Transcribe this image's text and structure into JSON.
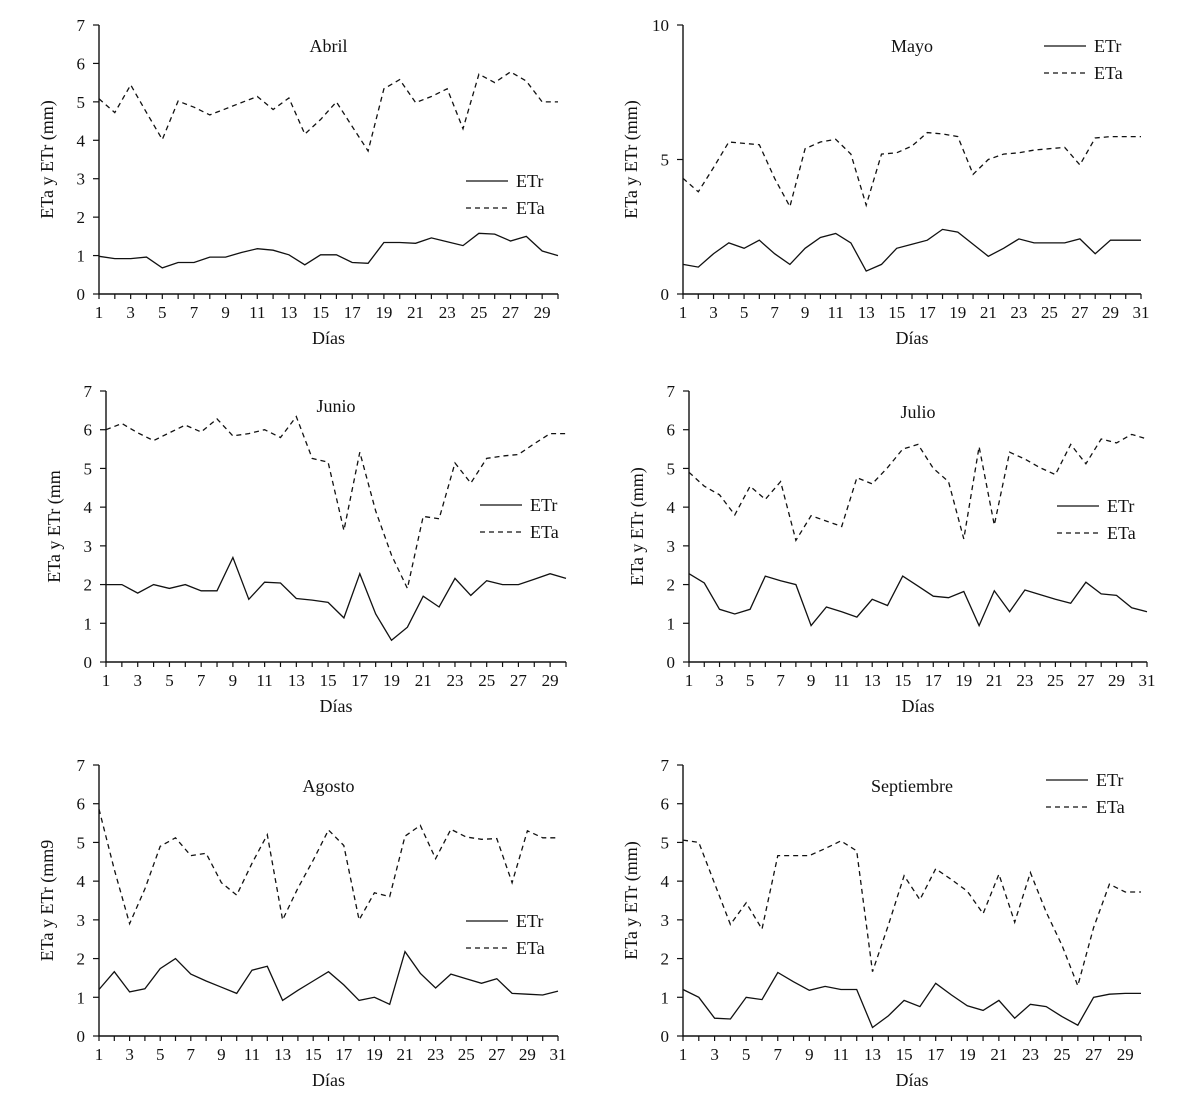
{
  "chart_data": [
    {
      "type": "line",
      "title": "Abril",
      "xlabel": "Días",
      "ylabel": "ETa y ETr (mm)",
      "xlim": [
        1,
        30
      ],
      "ylim": [
        0,
        7
      ],
      "xticks": [
        1,
        3,
        5,
        7,
        9,
        11,
        13,
        15,
        17,
        19,
        21,
        23,
        25,
        27,
        29
      ],
      "yticks": [
        0,
        1,
        2,
        3,
        4,
        5,
        6,
        7
      ],
      "legend_position": "center-right",
      "series": [
        {
          "name": "ETr",
          "style": "solid",
          "x": [
            1,
            2,
            3,
            4,
            5,
            6,
            7,
            8,
            9,
            10,
            11,
            12,
            13,
            14,
            15,
            16,
            17,
            18,
            19,
            20,
            21,
            22,
            23,
            24,
            25,
            26,
            27,
            28,
            29,
            30
          ],
          "values": [
            0.98,
            0.92,
            0.92,
            0.96,
            0.68,
            0.82,
            0.82,
            0.96,
            0.96,
            1.08,
            1.18,
            1.14,
            1.02,
            0.76,
            1.02,
            1.02,
            0.82,
            0.8,
            1.34,
            1.34,
            1.32,
            1.46,
            1.36,
            1.26,
            1.58,
            1.56,
            1.38,
            1.5,
            1.12,
            1.0
          ]
        },
        {
          "name": "ETa",
          "style": "dashed",
          "x": [
            1,
            2,
            3,
            4,
            5,
            6,
            7,
            8,
            9,
            10,
            11,
            12,
            13,
            14,
            15,
            16,
            17,
            18,
            19,
            20,
            21,
            22,
            23,
            24,
            25,
            26,
            27,
            28,
            29,
            30
          ],
          "values": [
            5.08,
            4.72,
            5.44,
            4.72,
            4.02,
            5.02,
            4.86,
            4.66,
            4.82,
            4.98,
            5.14,
            4.8,
            5.1,
            4.16,
            4.54,
            5.0,
            4.36,
            3.72,
            5.34,
            5.58,
            4.98,
            5.14,
            5.34,
            4.3,
            5.72,
            5.5,
            5.78,
            5.54,
            5.0,
            5.0
          ]
        }
      ]
    },
    {
      "type": "line",
      "title": "Mayo",
      "xlabel": "Días",
      "ylabel": "ETa y ETr (mm)",
      "xlim": [
        1,
        31
      ],
      "ylim": [
        0,
        10
      ],
      "xticks": [
        1,
        3,
        5,
        7,
        9,
        11,
        13,
        15,
        17,
        19,
        21,
        23,
        25,
        27,
        29,
        31
      ],
      "yticks": [
        0,
        5,
        10
      ],
      "legend_position": "top-right",
      "series": [
        {
          "name": "ETr",
          "style": "solid",
          "x": [
            1,
            2,
            3,
            4,
            5,
            6,
            7,
            8,
            9,
            10,
            11,
            12,
            13,
            14,
            15,
            16,
            17,
            18,
            19,
            20,
            21,
            22,
            23,
            24,
            25,
            26,
            27,
            28,
            29,
            30,
            31
          ],
          "values": [
            1.1,
            1.0,
            1.5,
            1.9,
            1.7,
            2.0,
            1.5,
            1.1,
            1.7,
            2.1,
            2.25,
            1.9,
            0.85,
            1.1,
            1.7,
            1.85,
            2.0,
            2.4,
            2.3,
            1.85,
            1.4,
            1.7,
            2.05,
            1.9,
            1.9,
            1.9,
            2.05,
            1.5,
            2.0,
            2.0,
            2.0
          ]
        },
        {
          "name": "ETa",
          "style": "dashed",
          "x": [
            1,
            2,
            3,
            4,
            5,
            6,
            7,
            8,
            9,
            10,
            11,
            12,
            13,
            14,
            15,
            16,
            17,
            18,
            19,
            20,
            21,
            22,
            23,
            24,
            25,
            26,
            27,
            28,
            29,
            30,
            31
          ],
          "values": [
            4.3,
            3.8,
            4.7,
            5.65,
            5.6,
            5.55,
            4.3,
            3.25,
            5.4,
            5.65,
            5.75,
            5.2,
            3.3,
            5.2,
            5.25,
            5.5,
            6.0,
            5.95,
            5.85,
            4.45,
            5.0,
            5.2,
            5.25,
            5.35,
            5.4,
            5.45,
            4.8,
            5.8,
            5.85,
            5.85,
            5.85
          ]
        }
      ]
    },
    {
      "type": "line",
      "title": "Junio",
      "xlabel": "Días",
      "ylabel": "ETa y ETr (mm",
      "xlim": [
        1,
        30
      ],
      "ylim": [
        0,
        7
      ],
      "xticks": [
        1,
        3,
        5,
        7,
        9,
        11,
        13,
        15,
        17,
        19,
        21,
        23,
        25,
        27,
        29
      ],
      "yticks": [
        0,
        1,
        2,
        3,
        4,
        5,
        6,
        7
      ],
      "legend_position": "center-right",
      "series": [
        {
          "name": "ETr",
          "style": "solid",
          "x": [
            1,
            2,
            3,
            4,
            5,
            6,
            7,
            8,
            9,
            10,
            11,
            12,
            13,
            14,
            15,
            16,
            17,
            18,
            19,
            20,
            21,
            22,
            23,
            24,
            25,
            26,
            27,
            28,
            29,
            30
          ],
          "values": [
            2.0,
            2.0,
            1.78,
            2.0,
            1.9,
            2.0,
            1.84,
            1.84,
            2.7,
            1.62,
            2.06,
            2.04,
            1.64,
            1.6,
            1.54,
            1.14,
            2.28,
            1.24,
            0.56,
            0.9,
            1.7,
            1.42,
            2.16,
            1.72,
            2.1,
            2.0,
            2.0,
            2.14,
            2.28,
            2.16
          ]
        },
        {
          "name": "ETa",
          "style": "dashed",
          "x": [
            1,
            2,
            3,
            4,
            5,
            6,
            7,
            8,
            9,
            10,
            11,
            12,
            13,
            14,
            15,
            16,
            17,
            18,
            19,
            20,
            21,
            22,
            23,
            24,
            25,
            26,
            27,
            28,
            29,
            30
          ],
          "values": [
            6.0,
            6.16,
            5.92,
            5.72,
            5.92,
            6.12,
            5.94,
            6.28,
            5.84,
            5.9,
            6.0,
            5.8,
            6.34,
            5.26,
            5.16,
            3.4,
            5.42,
            3.9,
            2.76,
            1.9,
            3.76,
            3.7,
            5.14,
            4.62,
            5.26,
            5.32,
            5.36,
            5.64,
            5.9,
            5.9
          ]
        }
      ]
    },
    {
      "type": "line",
      "title": "Julio",
      "xlabel": "Días",
      "ylabel": "ETa y ETr (mm)",
      "xlim": [
        1,
        31
      ],
      "ylim": [
        0,
        7
      ],
      "xticks": [
        1,
        3,
        5,
        7,
        9,
        11,
        13,
        15,
        17,
        19,
        21,
        23,
        25,
        27,
        29,
        31
      ],
      "yticks": [
        0,
        1,
        2,
        3,
        4,
        5,
        6,
        7
      ],
      "legend_position": "center-right",
      "series": [
        {
          "name": "ETr",
          "style": "solid",
          "x": [
            1,
            2,
            3,
            4,
            5,
            6,
            7,
            8,
            9,
            10,
            11,
            12,
            13,
            14,
            15,
            16,
            17,
            18,
            19,
            20,
            21,
            22,
            23,
            24,
            25,
            26,
            27,
            28,
            29,
            30,
            31
          ],
          "values": [
            2.28,
            2.04,
            1.36,
            1.24,
            1.36,
            2.22,
            2.1,
            2.0,
            0.94,
            1.42,
            1.3,
            1.16,
            1.62,
            1.46,
            2.22,
            1.96,
            1.7,
            1.66,
            1.82,
            0.94,
            1.84,
            1.3,
            1.86,
            1.74,
            1.62,
            1.52,
            2.06,
            1.76,
            1.72,
            1.4,
            1.3
          ]
        },
        {
          "name": "ETa",
          "style": "dashed",
          "x": [
            1,
            2,
            3,
            4,
            5,
            6,
            7,
            8,
            9,
            10,
            11,
            12,
            13,
            14,
            15,
            16,
            17,
            18,
            19,
            20,
            21,
            22,
            23,
            24,
            25,
            26,
            27,
            28,
            29,
            30,
            31
          ],
          "values": [
            4.9,
            4.54,
            4.32,
            3.8,
            4.54,
            4.2,
            4.66,
            3.14,
            3.78,
            3.64,
            3.5,
            4.76,
            4.6,
            5.02,
            5.5,
            5.62,
            5.0,
            4.66,
            3.18,
            5.56,
            3.54,
            5.42,
            5.24,
            5.02,
            4.84,
            5.62,
            5.12,
            5.76,
            5.66,
            5.88,
            5.76
          ]
        }
      ]
    },
    {
      "type": "line",
      "title": "Agosto",
      "xlabel": "Días",
      "ylabel": "ETa y ETr (mm9",
      "xlim": [
        1,
        31
      ],
      "ylim": [
        0,
        7
      ],
      "xticks": [
        1,
        3,
        5,
        7,
        9,
        11,
        13,
        15,
        17,
        19,
        21,
        23,
        25,
        27,
        29,
        31
      ],
      "yticks": [
        0,
        1,
        2,
        3,
        4,
        5,
        6,
        7
      ],
      "legend_position": "center-right",
      "series": [
        {
          "name": "ETr",
          "style": "solid",
          "x": [
            1,
            2,
            3,
            4,
            5,
            6,
            7,
            8,
            9,
            10,
            11,
            12,
            13,
            14,
            15,
            16,
            17,
            18,
            19,
            20,
            21,
            22,
            23,
            24,
            25,
            26,
            27,
            28,
            29,
            30,
            31
          ],
          "values": [
            1.2,
            1.66,
            1.14,
            1.22,
            1.74,
            2.0,
            1.6,
            1.42,
            1.26,
            1.1,
            1.7,
            1.8,
            0.92,
            1.18,
            1.42,
            1.66,
            1.32,
            0.92,
            1.0,
            0.82,
            2.18,
            1.62,
            1.24,
            1.6,
            1.48,
            1.36,
            1.48,
            1.1,
            1.08,
            1.06,
            1.16
          ]
        },
        {
          "name": "ETa",
          "style": "dashed",
          "x": [
            1,
            2,
            3,
            4,
            5,
            6,
            7,
            8,
            9,
            10,
            11,
            12,
            13,
            14,
            15,
            16,
            17,
            18,
            19,
            20,
            21,
            22,
            23,
            24,
            25,
            26,
            27,
            28,
            29,
            30,
            31
          ],
          "values": [
            5.86,
            4.3,
            2.9,
            3.8,
            4.9,
            5.12,
            4.66,
            4.72,
            3.96,
            3.64,
            4.46,
            5.2,
            3.0,
            3.82,
            4.54,
            5.32,
            4.92,
            3.0,
            3.7,
            3.6,
            5.16,
            5.44,
            4.58,
            5.34,
            5.14,
            5.08,
            5.1,
            3.96,
            5.3,
            5.12,
            5.12
          ]
        }
      ]
    },
    {
      "type": "line",
      "title": "Septiembre",
      "xlabel": "Días",
      "ylabel": "ETa y ETr (mm)",
      "xlim": [
        1,
        30
      ],
      "ylim": [
        0,
        7
      ],
      "xticks": [
        1,
        3,
        5,
        7,
        9,
        11,
        13,
        15,
        17,
        19,
        21,
        23,
        25,
        27,
        29
      ],
      "yticks": [
        0,
        1,
        2,
        3,
        4,
        5,
        6,
        7
      ],
      "legend_position": "top-right",
      "series": [
        {
          "name": "ETr",
          "style": "solid",
          "x": [
            1,
            2,
            3,
            4,
            5,
            6,
            7,
            8,
            9,
            10,
            11,
            12,
            13,
            14,
            15,
            16,
            17,
            18,
            19,
            20,
            21,
            22,
            23,
            24,
            25,
            26,
            27,
            28,
            29,
            30
          ],
          "values": [
            1.2,
            1.0,
            0.46,
            0.44,
            1.0,
            0.94,
            1.64,
            1.4,
            1.18,
            1.28,
            1.2,
            1.2,
            0.22,
            0.52,
            0.92,
            0.76,
            1.36,
            1.06,
            0.78,
            0.66,
            0.92,
            0.46,
            0.82,
            0.76,
            0.5,
            0.28,
            1.0,
            1.08,
            1.1,
            1.1
          ]
        },
        {
          "name": "ETa",
          "style": "dashed",
          "x": [
            1,
            2,
            3,
            4,
            5,
            6,
            7,
            8,
            9,
            10,
            11,
            12,
            13,
            14,
            15,
            16,
            17,
            18,
            19,
            20,
            21,
            22,
            23,
            24,
            25,
            26,
            27,
            28,
            29,
            30
          ],
          "values": [
            5.06,
            5.0,
            3.94,
            2.88,
            3.44,
            2.76,
            4.66,
            4.66,
            4.66,
            4.84,
            5.04,
            4.78,
            1.66,
            2.86,
            4.14,
            3.52,
            4.32,
            4.04,
            3.74,
            3.16,
            4.18,
            2.94,
            4.22,
            3.2,
            2.34,
            1.3,
            2.8,
            3.92,
            3.72,
            3.72
          ]
        }
      ]
    }
  ]
}
